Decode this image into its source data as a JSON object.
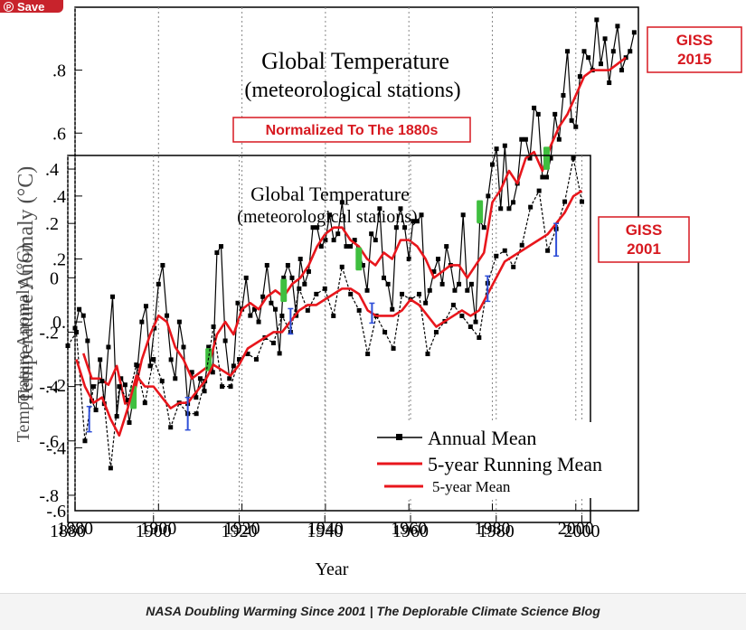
{
  "save_button": {
    "label": "Save",
    "icon": "pinterest-icon"
  },
  "caption": "NASA Doubling Warming Since 2001 | The Deplorable Climate Science Blog",
  "colors": {
    "giss2015_series": "#000000",
    "giss2001_series": "#000000",
    "running_mean": "#e8161c",
    "label_red": "#d71920",
    "green_errbar": "#3fbf3f",
    "blue_errbar": "#2f4fd8"
  },
  "chart_data": [
    {
      "type": "line",
      "title": "Global Temperature",
      "subtitle": "(meteorological stations)",
      "ylabel": "Temperature Anomaly (°C)",
      "xlim": [
        1880,
        2015
      ],
      "ylim": [
        -0.6,
        1.0
      ],
      "x_ticks": [
        "1880",
        "1900",
        "1920",
        "1940",
        "1960",
        "1980",
        "2000"
      ],
      "y_ticks": [
        ".8",
        ".6",
        ".4",
        ".2",
        "0.",
        "-.2",
        "-.4",
        "-.6"
      ],
      "annotations": {
        "normalized": "Normalized To The 1880s",
        "source": "GISS\n2015"
      },
      "series": [
        {
          "name": "Annual Mean",
          "x": [
            1880,
            1881,
            1882,
            1883,
            1884,
            1885,
            1886,
            1887,
            1888,
            1889,
            1890,
            1891,
            1892,
            1893,
            1894,
            1895,
            1896,
            1897,
            1898,
            1899,
            1900,
            1901,
            1902,
            1903,
            1904,
            1905,
            1906,
            1907,
            1908,
            1909,
            1910,
            1911,
            1912,
            1913,
            1914,
            1915,
            1916,
            1917,
            1918,
            1919,
            1920,
            1921,
            1922,
            1923,
            1924,
            1925,
            1926,
            1927,
            1928,
            1929,
            1930,
            1931,
            1932,
            1933,
            1934,
            1935,
            1936,
            1937,
            1938,
            1939,
            1940,
            1941,
            1942,
            1943,
            1944,
            1945,
            1946,
            1947,
            1948,
            1949,
            1950,
            1951,
            1952,
            1953,
            1954,
            1955,
            1956,
            1957,
            1958,
            1959,
            1960,
            1961,
            1962,
            1963,
            1964,
            1965,
            1966,
            1967,
            1968,
            1969,
            1970,
            1971,
            1972,
            1973,
            1974,
            1975,
            1976,
            1977,
            1978,
            1979,
            1980,
            1981,
            1982,
            1983,
            1984,
            1985,
            1986,
            1987,
            1988,
            1989,
            1990,
            1991,
            1992,
            1993,
            1994,
            1995,
            1996,
            1997,
            1998,
            1999,
            2000,
            2001,
            2002,
            2003,
            2004,
            2005,
            2006,
            2007,
            2008,
            2009,
            2010,
            2011,
            2012,
            2013,
            2014
          ],
          "values": [
            -0.02,
            0.04,
            0.02,
            -0.06,
            -0.25,
            -0.28,
            -0.12,
            -0.26,
            -0.08,
            0.08,
            -0.3,
            -0.18,
            -0.2,
            -0.32,
            -0.24,
            -0.14,
            0.0,
            0.05,
            -0.14,
            -0.02,
            0.12,
            0.18,
            0.02,
            -0.12,
            -0.18,
            0.0,
            -0.08,
            -0.26,
            -0.16,
            -0.24,
            -0.18,
            -0.22,
            -0.08,
            -0.16,
            0.22,
            0.24,
            -0.06,
            -0.18,
            -0.14,
            0.06,
            0.04,
            0.14,
            0.02,
            0.04,
            0.0,
            0.08,
            0.18,
            0.06,
            0.04,
            -0.1,
            0.14,
            0.18,
            0.14,
            0.02,
            0.2,
            0.12,
            0.16,
            0.3,
            0.3,
            0.24,
            0.26,
            0.34,
            0.26,
            0.28,
            0.38,
            0.24,
            0.24,
            0.26,
            0.22,
            0.18,
            0.1,
            0.28,
            0.26,
            0.36,
            0.14,
            0.12,
            0.04,
            0.3,
            0.36,
            0.3,
            0.2,
            0.32,
            0.32,
            0.34,
            0.06,
            0.1,
            0.16,
            0.2,
            0.12,
            0.24,
            0.18,
            0.1,
            0.12,
            0.34,
            0.1,
            0.12,
            0.0,
            0.32,
            0.3,
            0.4,
            0.5,
            0.55,
            0.36,
            0.56,
            0.36,
            0.38,
            0.44,
            0.58,
            0.58,
            0.52,
            0.68,
            0.66,
            0.46,
            0.46,
            0.52,
            0.66,
            0.58,
            0.72,
            0.86,
            0.64,
            0.62,
            0.78,
            0.86,
            0.84,
            0.8,
            0.96,
            0.82,
            0.9,
            0.76,
            0.86,
            0.94,
            0.8,
            0.84,
            0.86,
            0.92
          ]
        },
        {
          "name": "5-year Running Mean",
          "x": [
            1882,
            1884,
            1886,
            1888,
            1890,
            1892,
            1894,
            1896,
            1898,
            1900,
            1902,
            1904,
            1906,
            1908,
            1910,
            1912,
            1914,
            1916,
            1918,
            1920,
            1922,
            1924,
            1926,
            1928,
            1930,
            1932,
            1934,
            1936,
            1938,
            1940,
            1942,
            1944,
            1946,
            1948,
            1950,
            1952,
            1954,
            1956,
            1958,
            1960,
            1962,
            1964,
            1966,
            1968,
            1970,
            1972,
            1974,
            1976,
            1978,
            1980,
            1982,
            1984,
            1986,
            1988,
            1990,
            1992,
            1994,
            1996,
            1998,
            2000,
            2002,
            2004,
            2006,
            2008,
            2010,
            2012
          ],
          "values": [
            -0.1,
            -0.18,
            -0.18,
            -0.2,
            -0.14,
            -0.26,
            -0.24,
            -0.12,
            -0.04,
            0.02,
            0.0,
            -0.08,
            -0.12,
            -0.18,
            -0.16,
            -0.14,
            -0.04,
            0.0,
            -0.04,
            0.04,
            0.06,
            0.04,
            0.08,
            0.1,
            0.08,
            0.12,
            0.14,
            0.18,
            0.24,
            0.28,
            0.3,
            0.3,
            0.26,
            0.24,
            0.2,
            0.18,
            0.22,
            0.2,
            0.26,
            0.26,
            0.24,
            0.2,
            0.14,
            0.16,
            0.18,
            0.18,
            0.14,
            0.18,
            0.22,
            0.38,
            0.42,
            0.48,
            0.44,
            0.52,
            0.54,
            0.48,
            0.56,
            0.62,
            0.66,
            0.72,
            0.78,
            0.8,
            0.8,
            0.8,
            0.82,
            0.84
          ]
        }
      ]
    },
    {
      "type": "line",
      "title": "Global Temperature",
      "subtitle": "(meteorological stations)",
      "ylabel": "Temperature Anomaly (°C)",
      "xlabel": "Year",
      "xlim": [
        1880,
        2002
      ],
      "ylim": [
        -0.9,
        0.45
      ],
      "x_ticks": [
        "1880",
        "1900",
        "1920",
        "1940",
        "1960",
        "1980",
        "2000"
      ],
      "y_ticks": [
        ".4",
        ".2",
        "0",
        "-.2",
        "-.4",
        "-.6",
        "-.8"
      ],
      "legend": [
        "Annual Mean",
        "5-year Running Mean",
        "5-year Mean"
      ],
      "legend_position": "bottom-right",
      "annotations": {
        "source": "GISS\n2001"
      },
      "series": [
        {
          "name": "Annual Mean",
          "x": [
            1880,
            1882,
            1884,
            1886,
            1888,
            1890,
            1892,
            1894,
            1896,
            1898,
            1900,
            1902,
            1904,
            1906,
            1908,
            1910,
            1912,
            1914,
            1916,
            1918,
            1920,
            1922,
            1924,
            1926,
            1928,
            1930,
            1932,
            1934,
            1936,
            1938,
            1940,
            1942,
            1944,
            1946,
            1948,
            1950,
            1952,
            1954,
            1956,
            1958,
            1960,
            1962,
            1964,
            1966,
            1968,
            1970,
            1972,
            1974,
            1976,
            1978,
            1980,
            1982,
            1984,
            1986,
            1988,
            1990,
            1992,
            1994,
            1996,
            1998,
            2000
          ],
          "values": [
            -0.25,
            -0.2,
            -0.6,
            -0.4,
            -0.38,
            -0.7,
            -0.4,
            -0.45,
            -0.32,
            -0.46,
            -0.3,
            -0.38,
            -0.55,
            -0.46,
            -0.5,
            -0.5,
            -0.38,
            -0.18,
            -0.4,
            -0.4,
            -0.3,
            -0.28,
            -0.3,
            -0.22,
            -0.24,
            -0.14,
            -0.2,
            -0.04,
            -0.12,
            -0.06,
            -0.04,
            -0.14,
            0.04,
            -0.06,
            -0.12,
            -0.28,
            -0.14,
            -0.2,
            -0.26,
            -0.06,
            -0.08,
            -0.06,
            -0.28,
            -0.2,
            -0.16,
            -0.1,
            -0.14,
            -0.18,
            -0.22,
            -0.02,
            0.08,
            0.1,
            0.04,
            0.12,
            0.26,
            0.32,
            0.1,
            0.18,
            0.28,
            0.44,
            0.28
          ]
        },
        {
          "name": "5-year Running Mean",
          "x": [
            1882,
            1884,
            1886,
            1888,
            1890,
            1892,
            1894,
            1896,
            1898,
            1900,
            1902,
            1904,
            1906,
            1908,
            1910,
            1912,
            1914,
            1916,
            1918,
            1920,
            1922,
            1924,
            1926,
            1928,
            1930,
            1932,
            1934,
            1936,
            1938,
            1940,
            1942,
            1944,
            1946,
            1948,
            1950,
            1952,
            1954,
            1956,
            1958,
            1960,
            1962,
            1964,
            1966,
            1968,
            1970,
            1972,
            1974,
            1976,
            1978,
            1980,
            1982,
            1984,
            1986,
            1988,
            1990,
            1992,
            1994,
            1996,
            1998,
            2000
          ],
          "values": [
            -0.3,
            -0.4,
            -0.46,
            -0.44,
            -0.52,
            -0.58,
            -0.48,
            -0.36,
            -0.4,
            -0.4,
            -0.44,
            -0.48,
            -0.46,
            -0.46,
            -0.42,
            -0.38,
            -0.32,
            -0.34,
            -0.36,
            -0.32,
            -0.26,
            -0.24,
            -0.22,
            -0.2,
            -0.2,
            -0.16,
            -0.12,
            -0.1,
            -0.1,
            -0.08,
            -0.06,
            -0.04,
            -0.04,
            -0.06,
            -0.12,
            -0.14,
            -0.14,
            -0.14,
            -0.12,
            -0.08,
            -0.1,
            -0.14,
            -0.18,
            -0.16,
            -0.14,
            -0.12,
            -0.14,
            -0.12,
            -0.06,
            0.0,
            0.06,
            0.08,
            0.1,
            0.12,
            0.14,
            0.16,
            0.2,
            0.24,
            0.3,
            0.32
          ]
        }
      ]
    }
  ]
}
